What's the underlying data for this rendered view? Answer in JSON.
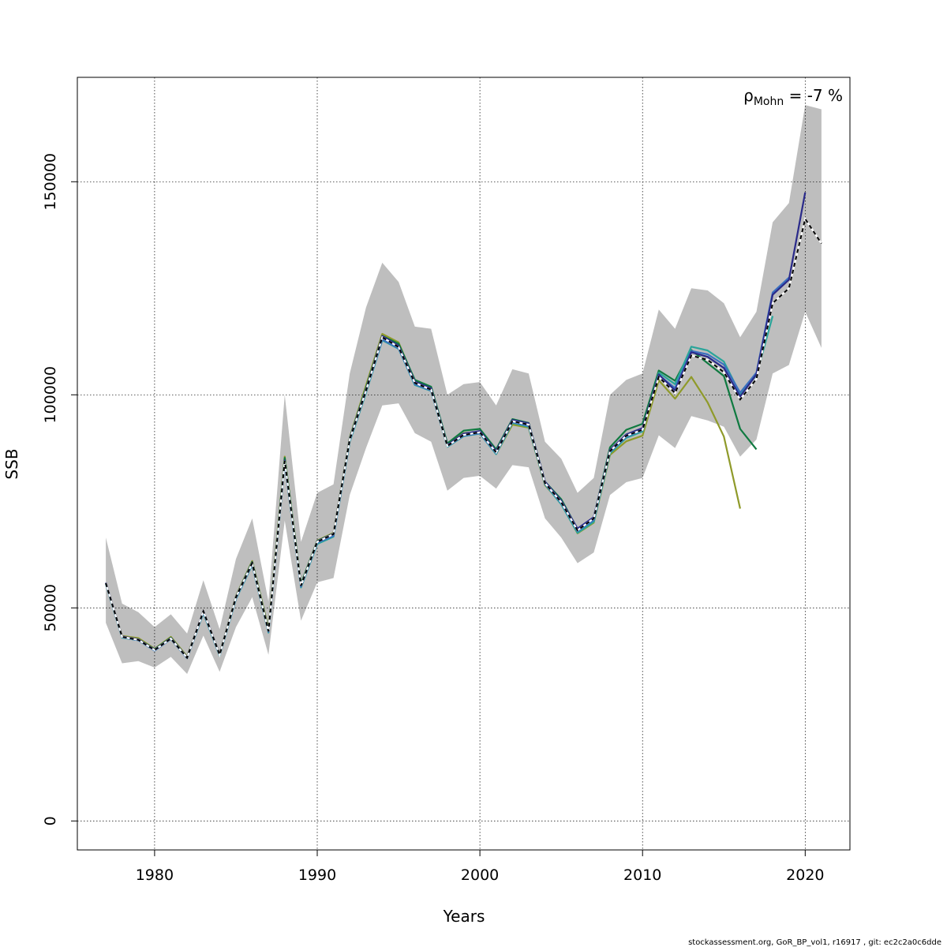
{
  "chart_data": {
    "type": "line",
    "xlabel": "Years",
    "ylabel": "SSB",
    "xlim": [
      1975.25,
      2022.75
    ],
    "ylim": [
      -6800,
      174500
    ],
    "grid": true,
    "x_ticks": [
      1980,
      1990,
      2000,
      2010,
      2020
    ],
    "x_tick_labels": [
      "1980",
      "1990",
      "2000",
      "2010",
      "2020"
    ],
    "y_ticks": [
      0,
      50000,
      100000,
      150000
    ],
    "y_tick_labels": [
      "0",
      "50000",
      "100000",
      "150000"
    ],
    "annotation": {
      "symbol": "ρ",
      "subscript": "Mohn",
      "text": " = -7 %"
    },
    "footer": "stockassessment.org, GoR_BP_vol1, r16917 , git: ec2c2a0c6dde",
    "colors": {
      "band": "#bebebe",
      "base": "#000000",
      "peel1": "#2a2a8a",
      "peel2": "#3a6fc0",
      "peel3": "#2aa59a",
      "peel4": "#0f7a40",
      "peel5": "#8f9a2a"
    },
    "band": {
      "years": [
        1977,
        1978,
        1979,
        1980,
        1981,
        1982,
        1983,
        1984,
        1985,
        1986,
        1987,
        1988,
        1989,
        1990,
        1991,
        1992,
        1993,
        1994,
        1995,
        1996,
        1997,
        1998,
        1999,
        2000,
        2001,
        2002,
        2003,
        2004,
        2005,
        2006,
        2007,
        2008,
        2009,
        2010,
        2011,
        2012,
        2013,
        2014,
        2015,
        2016,
        2017,
        2018,
        2019,
        2020,
        2021
      ],
      "lower": [
        46500,
        37000,
        37500,
        36000,
        38500,
        34500,
        43500,
        35000,
        45500,
        52500,
        39000,
        70500,
        47000,
        56000,
        57000,
        76500,
        87500,
        97500,
        98000,
        91000,
        89000,
        77500,
        80500,
        81000,
        78000,
        83500,
        83000,
        71000,
        66500,
        60500,
        63000,
        76500,
        79500,
        80500,
        90500,
        87500,
        95000,
        94000,
        92500,
        85500,
        89500,
        105000,
        107000,
        119500,
        111000
      ],
      "upper": [
        66500,
        51000,
        49000,
        45500,
        48500,
        44000,
        56500,
        45000,
        61500,
        71000,
        51500,
        100000,
        65500,
        77000,
        79000,
        105000,
        120500,
        131000,
        126500,
        116000,
        115500,
        100000,
        102500,
        103000,
        97500,
        106000,
        105000,
        89000,
        85000,
        77000,
        80500,
        100000,
        103500,
        105000,
        120000,
        115500,
        125000,
        124500,
        121500,
        113500,
        119500,
        140500,
        145000,
        168000,
        167000
      ]
    },
    "series": [
      {
        "color_key": "base",
        "dashed": true,
        "x": [
          1977,
          1978,
          1979,
          1980,
          1981,
          1982,
          1983,
          1984,
          1985,
          1986,
          1987,
          1988,
          1989,
          1990,
          1991,
          1992,
          1993,
          1994,
          1995,
          1996,
          1997,
          1998,
          1999,
          2000,
          2001,
          2002,
          2003,
          2004,
          2005,
          2006,
          2007,
          2008,
          2009,
          2010,
          2011,
          2012,
          2013,
          2014,
          2015,
          2016,
          2017,
          2018,
          2019,
          2020,
          2021
        ],
        "y": [
          55800,
          43200,
          42500,
          40100,
          42800,
          38300,
          49200,
          39000,
          52500,
          60500,
          44500,
          84500,
          55200,
          65500,
          67300,
          89500,
          101000,
          113500,
          111200,
          102800,
          101200,
          88000,
          90600,
          91200,
          86500,
          93800,
          93000,
          79300,
          74800,
          68200,
          71000,
          86800,
          90400,
          91800,
          104200,
          100400,
          109200,
          108200,
          105300,
          98900,
          103700,
          121500,
          125000,
          141300,
          135500
        ]
      },
      {
        "color_key": "peel1",
        "dashed": false,
        "x": [
          1977,
          1978,
          1979,
          1980,
          1981,
          1982,
          1983,
          1984,
          1985,
          1986,
          1987,
          1988,
          1989,
          1990,
          1991,
          1992,
          1993,
          1994,
          1995,
          1996,
          1997,
          1998,
          1999,
          2000,
          2001,
          2002,
          2003,
          2004,
          2005,
          2006,
          2007,
          2008,
          2009,
          2010,
          2011,
          2012,
          2013,
          2014,
          2015,
          2016,
          2017,
          2018,
          2019,
          2020
        ],
        "y": [
          55900,
          43300,
          42600,
          40200,
          42900,
          38400,
          49300,
          39100,
          52600,
          60600,
          44600,
          84600,
          55300,
          65600,
          67400,
          89700,
          101300,
          113800,
          111500,
          103100,
          101500,
          88200,
          90900,
          91500,
          86800,
          94100,
          93300,
          79600,
          75100,
          68600,
          71300,
          87100,
          90700,
          92200,
          104800,
          101000,
          110000,
          108900,
          106300,
          99600,
          104800,
          123500,
          127000,
          147500
        ]
      },
      {
        "color_key": "peel2",
        "dashed": false,
        "x": [
          1977,
          1978,
          1979,
          1980,
          1981,
          1982,
          1983,
          1984,
          1985,
          1986,
          1987,
          1988,
          1989,
          1990,
          1991,
          1992,
          1993,
          1994,
          1995,
          1996,
          1997,
          1998,
          1999,
          2000,
          2001,
          2002,
          2003,
          2004,
          2005,
          2006,
          2007,
          2008,
          2009,
          2010,
          2011,
          2012,
          2013,
          2014,
          2015,
          2016,
          2017,
          2018,
          2019
        ],
        "y": [
          55700,
          43100,
          42400,
          40000,
          42700,
          38200,
          49000,
          38900,
          52300,
          60300,
          44400,
          84300,
          55000,
          65300,
          66900,
          89300,
          100800,
          113000,
          110900,
          102500,
          101000,
          87900,
          90400,
          91000,
          86300,
          93600,
          92700,
          79100,
          74600,
          68000,
          70600,
          86600,
          90200,
          91700,
          104600,
          101600,
          110300,
          109500,
          107100,
          100500,
          105200,
          124000,
          127500
        ]
      },
      {
        "color_key": "peel3",
        "dashed": false,
        "x": [
          1977,
          1978,
          1979,
          1980,
          1981,
          1982,
          1983,
          1984,
          1985,
          1986,
          1987,
          1988,
          1989,
          1990,
          1991,
          1992,
          1993,
          1994,
          1995,
          1996,
          1997,
          1998,
          1999,
          2000,
          2001,
          2002,
          2003,
          2004,
          2005,
          2006,
          2007,
          2008,
          2009,
          2010,
          2011,
          2012,
          2013,
          2014,
          2015,
          2016,
          2017,
          2018
        ],
        "y": [
          55600,
          43000,
          42400,
          40000,
          42700,
          38200,
          48800,
          38800,
          52100,
          60100,
          44200,
          84000,
          54800,
          65000,
          66700,
          89000,
          100500,
          112800,
          110800,
          102300,
          100900,
          87800,
          90300,
          90900,
          86100,
          93400,
          92500,
          79000,
          74300,
          67600,
          70200,
          86300,
          89900,
          91400,
          105200,
          102500,
          111300,
          110400,
          107800,
          100200,
          104600,
          118500
        ]
      },
      {
        "color_key": "peel4",
        "dashed": false,
        "x": [
          1977,
          1978,
          1979,
          1980,
          1981,
          1982,
          1983,
          1984,
          1985,
          1986,
          1987,
          1988,
          1989,
          1990,
          1991,
          1992,
          1993,
          1994,
          1995,
          1996,
          1997,
          1998,
          1999,
          2000,
          2001,
          2002,
          2003,
          2004,
          2005,
          2006,
          2007,
          2008,
          2009,
          2010,
          2011,
          2012,
          2013,
          2014,
          2015,
          2016,
          2017
        ],
        "y": [
          55800,
          43200,
          42600,
          40300,
          43000,
          38400,
          49200,
          39100,
          52600,
          60800,
          44800,
          85200,
          55600,
          65700,
          67400,
          89800,
          101600,
          113800,
          112000,
          103500,
          101900,
          88600,
          91600,
          92000,
          87200,
          94300,
          93400,
          79600,
          75500,
          68500,
          71200,
          87700,
          91800,
          93200,
          105700,
          103300,
          110500,
          107400,
          104400,
          92000,
          87200
        ]
      },
      {
        "color_key": "peel5",
        "dashed": false,
        "x": [
          1977,
          1978,
          1979,
          1980,
          1981,
          1982,
          1983,
          1984,
          1985,
          1986,
          1987,
          1988,
          1989,
          1990,
          1991,
          1992,
          1993,
          1994,
          1995,
          1996,
          1997,
          1998,
          1999,
          2000,
          2001,
          2002,
          2003,
          2004,
          2005,
          2006,
          2007,
          2008,
          2009,
          2010,
          2011,
          2012,
          2013,
          2014,
          2015,
          2016
        ],
        "y": [
          55800,
          43400,
          42900,
          40400,
          43200,
          38600,
          49200,
          39200,
          52800,
          61000,
          45200,
          85500,
          55600,
          65800,
          67600,
          90000,
          102200,
          114300,
          112300,
          103200,
          101800,
          88300,
          91000,
          91300,
          86100,
          93000,
          92300,
          78800,
          74500,
          67500,
          70000,
          85900,
          89100,
          90400,
          103400,
          99100,
          104200,
          98200,
          90200,
          73300
        ]
      }
    ]
  }
}
